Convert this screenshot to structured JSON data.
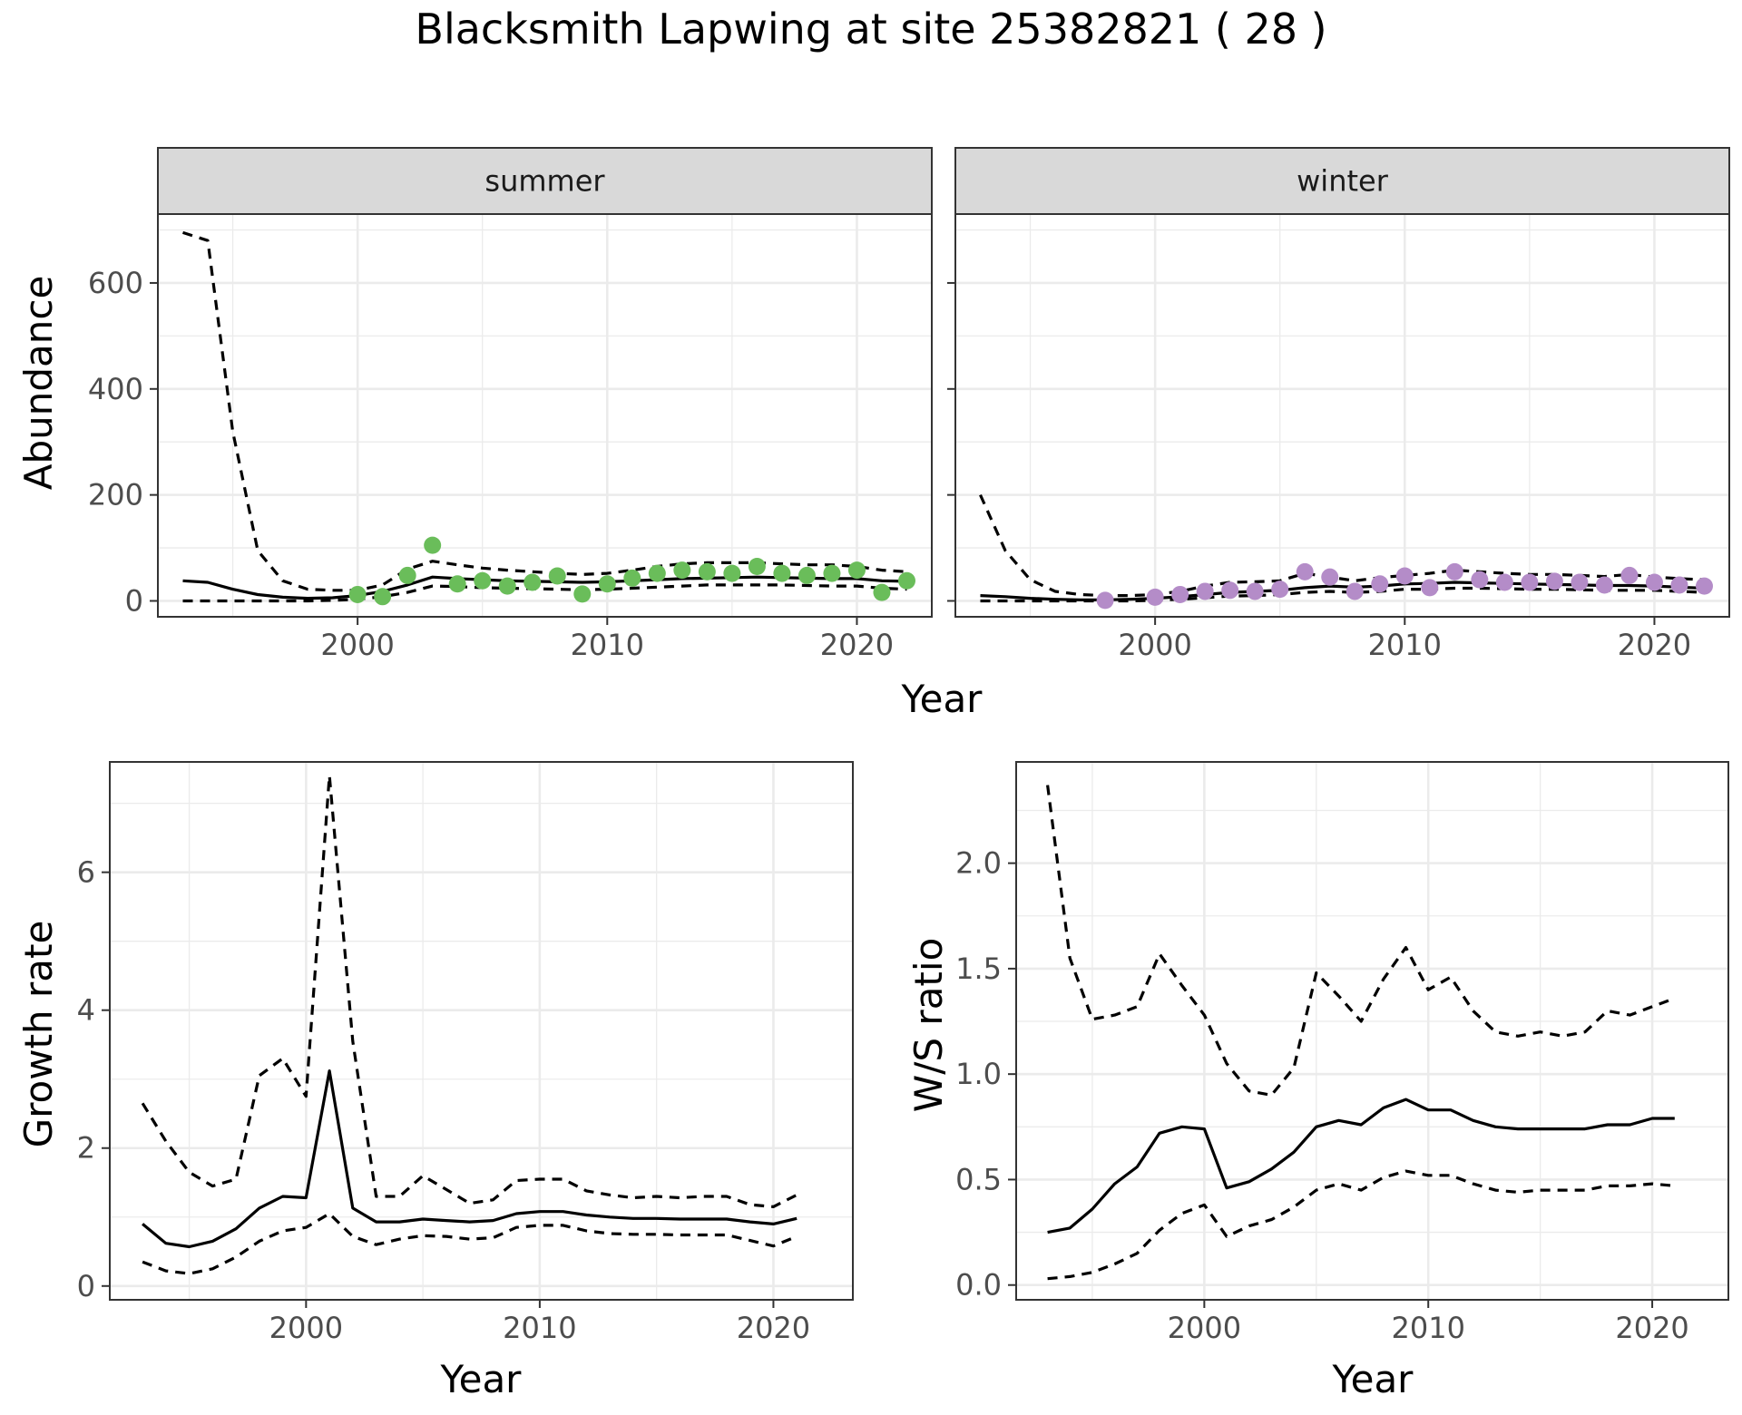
{
  "title": "Blacksmith Lapwing at site 25382821 ( 28 )",
  "colors": {
    "summer_points": "#6ABD5A",
    "winter_points": "#B48CC8",
    "line": "#000000",
    "strip": "#D9D9D9",
    "grid": "#EBEBEB"
  },
  "chart_data": [
    {
      "type": "line",
      "panel": "summer",
      "strip_label": "summer",
      "xlabel": "Year",
      "ylabel": "Abundance",
      "xlim": [
        1992,
        2023
      ],
      "ylim": [
        -30,
        730
      ],
      "x_ticks": [
        2000,
        2010,
        2020
      ],
      "x_tick_labels": [
        "2000",
        "2010",
        "2020"
      ],
      "y_ticks": [
        0,
        200,
        400,
        600
      ],
      "y_tick_labels": [
        "0",
        "200",
        "400",
        "600"
      ],
      "grid": true,
      "x": [
        1993,
        1994,
        1995,
        1996,
        1997,
        1998,
        1999,
        2000,
        2001,
        2002,
        2003,
        2004,
        2005,
        2006,
        2007,
        2008,
        2009,
        2010,
        2011,
        2012,
        2013,
        2014,
        2015,
        2016,
        2017,
        2018,
        2019,
        2020,
        2021,
        2022
      ],
      "series": [
        {
          "role": "estimate",
          "dash": "solid",
          "values": [
            38,
            35,
            22,
            12,
            7,
            5,
            6,
            10,
            18,
            30,
            45,
            42,
            40,
            38,
            37,
            36,
            35,
            36,
            38,
            40,
            42,
            43,
            44,
            45,
            44,
            43,
            42,
            42,
            38,
            37
          ]
        },
        {
          "role": "upper",
          "dash": "dashed",
          "values": [
            695,
            680,
            320,
            95,
            38,
            22,
            20,
            20,
            30,
            60,
            75,
            68,
            62,
            58,
            55,
            52,
            50,
            52,
            58,
            65,
            70,
            72,
            72,
            72,
            70,
            68,
            68,
            65,
            58,
            55
          ]
        },
        {
          "role": "lower",
          "dash": "dashed",
          "values": [
            0,
            0,
            0,
            0,
            0,
            0,
            1,
            3,
            8,
            16,
            28,
            27,
            25,
            24,
            23,
            22,
            21,
            22,
            24,
            26,
            28,
            30,
            30,
            30,
            30,
            29,
            28,
            28,
            24,
            22
          ]
        }
      ],
      "points": {
        "x": [
          2000,
          2001,
          2002,
          2003,
          2004,
          2005,
          2006,
          2007,
          2008,
          2009,
          2010,
          2011,
          2012,
          2013,
          2014,
          2015,
          2016,
          2017,
          2018,
          2019,
          2020,
          2021,
          2022
        ],
        "y": [
          12,
          8,
          48,
          105,
          32,
          38,
          28,
          35,
          47,
          13,
          32,
          43,
          52,
          58,
          55,
          52,
          65,
          52,
          48,
          52,
          58,
          16,
          38
        ]
      }
    },
    {
      "type": "line",
      "panel": "winter",
      "strip_label": "winter",
      "xlabel": "Year",
      "ylabel": "Abundance",
      "xlim": [
        1992,
        2023
      ],
      "ylim": [
        -30,
        730
      ],
      "x_ticks": [
        2000,
        2010,
        2020
      ],
      "x_tick_labels": [
        "2000",
        "2010",
        "2020"
      ],
      "grid": true,
      "x": [
        1993,
        1994,
        1995,
        1996,
        1997,
        1998,
        1999,
        2000,
        2001,
        2002,
        2003,
        2004,
        2005,
        2006,
        2007,
        2008,
        2009,
        2010,
        2011,
        2012,
        2013,
        2014,
        2015,
        2016,
        2017,
        2018,
        2019,
        2020,
        2021,
        2022
      ],
      "series": [
        {
          "role": "estimate",
          "dash": "solid",
          "values": [
            10,
            8,
            5,
            3,
            2,
            2,
            3,
            5,
            8,
            12,
            16,
            18,
            20,
            25,
            28,
            26,
            28,
            32,
            33,
            35,
            34,
            33,
            32,
            31,
            30,
            29,
            29,
            28,
            26,
            24
          ]
        },
        {
          "role": "upper",
          "dash": "dashed",
          "values": [
            200,
            95,
            40,
            18,
            12,
            10,
            10,
            12,
            18,
            28,
            35,
            36,
            38,
            52,
            45,
            38,
            44,
            48,
            52,
            58,
            55,
            52,
            50,
            50,
            48,
            46,
            50,
            45,
            42,
            40
          ]
        },
        {
          "role": "lower",
          "dash": "dashed",
          "values": [
            0,
            0,
            0,
            0,
            0,
            0,
            0,
            1,
            3,
            6,
            9,
            10,
            12,
            16,
            18,
            16,
            18,
            22,
            22,
            24,
            24,
            23,
            22,
            22,
            21,
            20,
            20,
            20,
            18,
            16
          ]
        }
      ],
      "points": {
        "x": [
          1998,
          2000,
          2001,
          2002,
          2003,
          2004,
          2005,
          2006,
          2007,
          2008,
          2009,
          2010,
          2011,
          2012,
          2013,
          2014,
          2015,
          2016,
          2017,
          2018,
          2019,
          2020,
          2021,
          2022
        ],
        "y": [
          1,
          7,
          12,
          18,
          20,
          18,
          22,
          55,
          45,
          18,
          32,
          47,
          25,
          55,
          40,
          35,
          35,
          37,
          35,
          30,
          48,
          35,
          30,
          28
        ]
      }
    },
    {
      "type": "line",
      "panel": "growth",
      "xlabel": "Year",
      "ylabel": "Growth rate",
      "xlim": [
        1991.6,
        2023.4
      ],
      "ylim": [
        -0.2,
        7.6
      ],
      "x_ticks": [
        2000,
        2010,
        2020
      ],
      "x_tick_labels": [
        "2000",
        "2010",
        "2020"
      ],
      "y_ticks": [
        0,
        2,
        4,
        6
      ],
      "y_tick_labels": [
        "0",
        "2",
        "4",
        "6"
      ],
      "grid": true,
      "x": [
        1993,
        1994,
        1995,
        1996,
        1997,
        1998,
        1999,
        2000,
        2001,
        2002,
        2003,
        2004,
        2005,
        2006,
        2007,
        2008,
        2009,
        2010,
        2011,
        2012,
        2013,
        2014,
        2015,
        2016,
        2017,
        2018,
        2019,
        2020,
        2021
      ],
      "series": [
        {
          "role": "estimate",
          "dash": "solid",
          "values": [
            0.9,
            0.62,
            0.57,
            0.65,
            0.83,
            1.13,
            1.3,
            1.28,
            3.12,
            1.13,
            0.93,
            0.93,
            0.97,
            0.95,
            0.93,
            0.95,
            1.05,
            1.08,
            1.08,
            1.03,
            1.0,
            0.98,
            0.98,
            0.97,
            0.97,
            0.97,
            0.93,
            0.9,
            0.98
          ]
        },
        {
          "role": "upper",
          "dash": "dashed",
          "values": [
            2.65,
            2.1,
            1.65,
            1.45,
            1.55,
            3.05,
            3.3,
            2.75,
            7.4,
            3.55,
            1.3,
            1.3,
            1.6,
            1.4,
            1.2,
            1.25,
            1.53,
            1.55,
            1.55,
            1.38,
            1.32,
            1.28,
            1.3,
            1.28,
            1.3,
            1.3,
            1.18,
            1.15,
            1.32
          ]
        },
        {
          "role": "lower",
          "dash": "dashed",
          "values": [
            0.35,
            0.22,
            0.18,
            0.25,
            0.42,
            0.65,
            0.8,
            0.85,
            1.05,
            0.72,
            0.6,
            0.68,
            0.73,
            0.72,
            0.68,
            0.7,
            0.85,
            0.88,
            0.88,
            0.8,
            0.76,
            0.75,
            0.75,
            0.74,
            0.74,
            0.74,
            0.66,
            0.58,
            0.72
          ]
        }
      ]
    },
    {
      "type": "line",
      "panel": "ratio",
      "xlabel": "Year",
      "ylabel": "W/S ratio",
      "xlim": [
        1991.6,
        2023.4
      ],
      "ylim": [
        -0.07,
        2.48
      ],
      "x_ticks": [
        2000,
        2010,
        2020
      ],
      "x_tick_labels": [
        "2000",
        "2010",
        "2020"
      ],
      "y_ticks": [
        0.0,
        0.5,
        1.0,
        1.5,
        2.0
      ],
      "y_tick_labels": [
        "0.0",
        "0.5",
        "1.0",
        "1.5",
        "2.0"
      ],
      "grid": true,
      "x": [
        1993,
        1994,
        1995,
        1996,
        1997,
        1998,
        1999,
        2000,
        2001,
        2002,
        2003,
        2004,
        2005,
        2006,
        2007,
        2008,
        2009,
        2010,
        2011,
        2012,
        2013,
        2014,
        2015,
        2016,
        2017,
        2018,
        2019,
        2020,
        2021
      ],
      "series": [
        {
          "role": "estimate",
          "dash": "solid",
          "values": [
            0.25,
            0.27,
            0.36,
            0.48,
            0.56,
            0.72,
            0.75,
            0.74,
            0.46,
            0.49,
            0.55,
            0.63,
            0.75,
            0.78,
            0.76,
            0.84,
            0.88,
            0.83,
            0.83,
            0.78,
            0.75,
            0.74,
            0.74,
            0.74,
            0.74,
            0.76,
            0.76,
            0.79,
            0.79
          ]
        },
        {
          "role": "upper",
          "dash": "dashed",
          "values": [
            2.37,
            1.55,
            1.26,
            1.28,
            1.32,
            1.57,
            1.42,
            1.28,
            1.05,
            0.92,
            0.9,
            1.03,
            1.48,
            1.37,
            1.25,
            1.45,
            1.6,
            1.4,
            1.46,
            1.3,
            1.2,
            1.18,
            1.2,
            1.18,
            1.2,
            1.3,
            1.28,
            1.32,
            1.36
          ]
        },
        {
          "role": "lower",
          "dash": "dashed",
          "values": [
            0.03,
            0.04,
            0.06,
            0.1,
            0.15,
            0.26,
            0.34,
            0.38,
            0.23,
            0.28,
            0.31,
            0.37,
            0.45,
            0.48,
            0.45,
            0.51,
            0.54,
            0.52,
            0.52,
            0.48,
            0.45,
            0.44,
            0.45,
            0.45,
            0.45,
            0.47,
            0.47,
            0.48,
            0.47
          ]
        }
      ]
    }
  ]
}
